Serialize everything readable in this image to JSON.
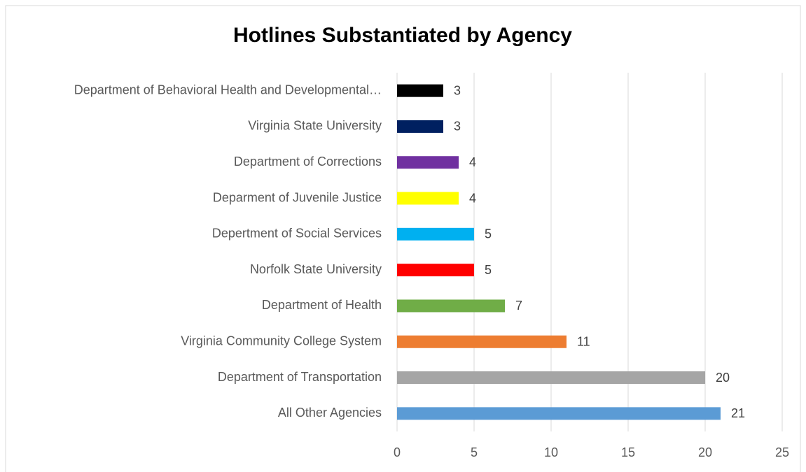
{
  "chart_data": {
    "type": "bar",
    "orientation": "horizontal",
    "title": "Hotlines Substantiated by Agency",
    "categories": [
      "Department of Behavioral Health and Developmental…",
      "Virginia State University",
      "Department of Corrections",
      "Deparment of Juvenile Justice",
      "Depertment of Social Services",
      "Norfolk State University",
      "Department of Health",
      "Virginia Community College System",
      "Department of Transportation",
      "All Other Agencies"
    ],
    "values": [
      3,
      3,
      4,
      4,
      5,
      5,
      7,
      11,
      20,
      21
    ],
    "colors": [
      "#000000",
      "#002060",
      "#7030a0",
      "#ffff00",
      "#00b0f0",
      "#ff0000",
      "#70ad47",
      "#ed7d31",
      "#a5a5a5",
      "#5b9bd5"
    ],
    "xlim": [
      0,
      25
    ],
    "xticks": [
      0,
      5,
      10,
      15,
      20,
      25
    ],
    "grid": true
  }
}
